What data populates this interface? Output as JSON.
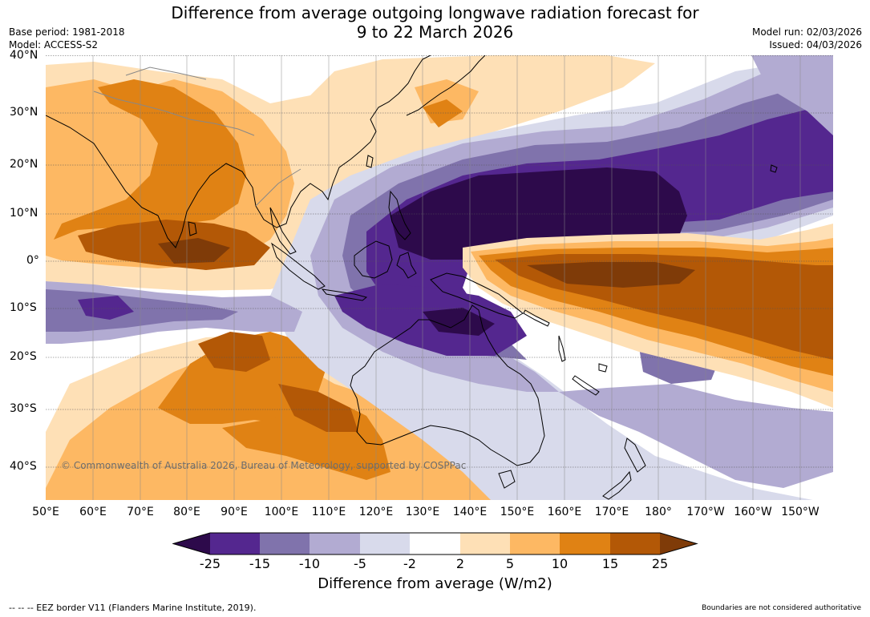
{
  "header": {
    "title_line1": "Difference from average outgoing longwave radiation forecast for",
    "title_line2": "9 to 22 March 2026",
    "base_period": "Base period: 1981-2018",
    "model": "Model: ACCESS-S2",
    "model_run": "Model run: 02/03/2026",
    "issued": "Issued: 04/03/2026"
  },
  "map": {
    "lat_range": [
      -47,
      40
    ],
    "lon_range": [
      50,
      217
    ],
    "lat_ticks": [
      {
        "value": 40,
        "label": "40°N"
      },
      {
        "value": 30,
        "label": "30°N"
      },
      {
        "value": 20,
        "label": "20°N"
      },
      {
        "value": 10,
        "label": "10°N"
      },
      {
        "value": 0,
        "label": "0°"
      },
      {
        "value": -10,
        "label": "10°S"
      },
      {
        "value": -20,
        "label": "20°S"
      },
      {
        "value": -30,
        "label": "30°S"
      },
      {
        "value": -40,
        "label": "40°S"
      }
    ],
    "lon_ticks": [
      {
        "value": 50,
        "label": "50°E"
      },
      {
        "value": 60,
        "label": "60°E"
      },
      {
        "value": 70,
        "label": "70°E"
      },
      {
        "value": 80,
        "label": "80°E"
      },
      {
        "value": 90,
        "label": "90°E"
      },
      {
        "value": 100,
        "label": "100°E"
      },
      {
        "value": 110,
        "label": "110°E"
      },
      {
        "value": 120,
        "label": "120°E"
      },
      {
        "value": 130,
        "label": "130°E"
      },
      {
        "value": 140,
        "label": "140°E"
      },
      {
        "value": 150,
        "label": "150°E"
      },
      {
        "value": 160,
        "label": "160°E"
      },
      {
        "value": 170,
        "label": "170°E"
      },
      {
        "value": 180,
        "label": "180°"
      },
      {
        "value": 190,
        "label": "170°W"
      },
      {
        "value": 200,
        "label": "160°W"
      },
      {
        "value": 210,
        "label": "150°W"
      }
    ],
    "copyright": "© Commonwealth of Australia 2026, Bureau of Meteorology, supported by COSPPac"
  },
  "colorbar": {
    "title": "Difference from average (W/m2)",
    "boundaries": [
      "-25",
      "-15",
      "-10",
      "-5",
      "-2",
      "2",
      "5",
      "10",
      "15",
      "25"
    ],
    "colors": {
      "lt_minus25": "#2d0a4b",
      "minus25_minus15": "#54278f",
      "minus15_minus10": "#8073ac",
      "minus10_minus5": "#b2abd2",
      "minus5_minus2": "#d8daeb",
      "neutral": "#ffffff",
      "plus2_plus5": "#fee0b6",
      "plus5_plus10": "#fdb863",
      "plus10_plus15": "#e08214",
      "plus15_plus25": "#b35806",
      "gt_plus25": "#7f3b08"
    }
  },
  "footer": {
    "eez_note": "--  --  -- EEZ border V11 (Flanders Marine Institute, 2019).",
    "disclaimer": "Boundaries are not considered authoritative"
  }
}
